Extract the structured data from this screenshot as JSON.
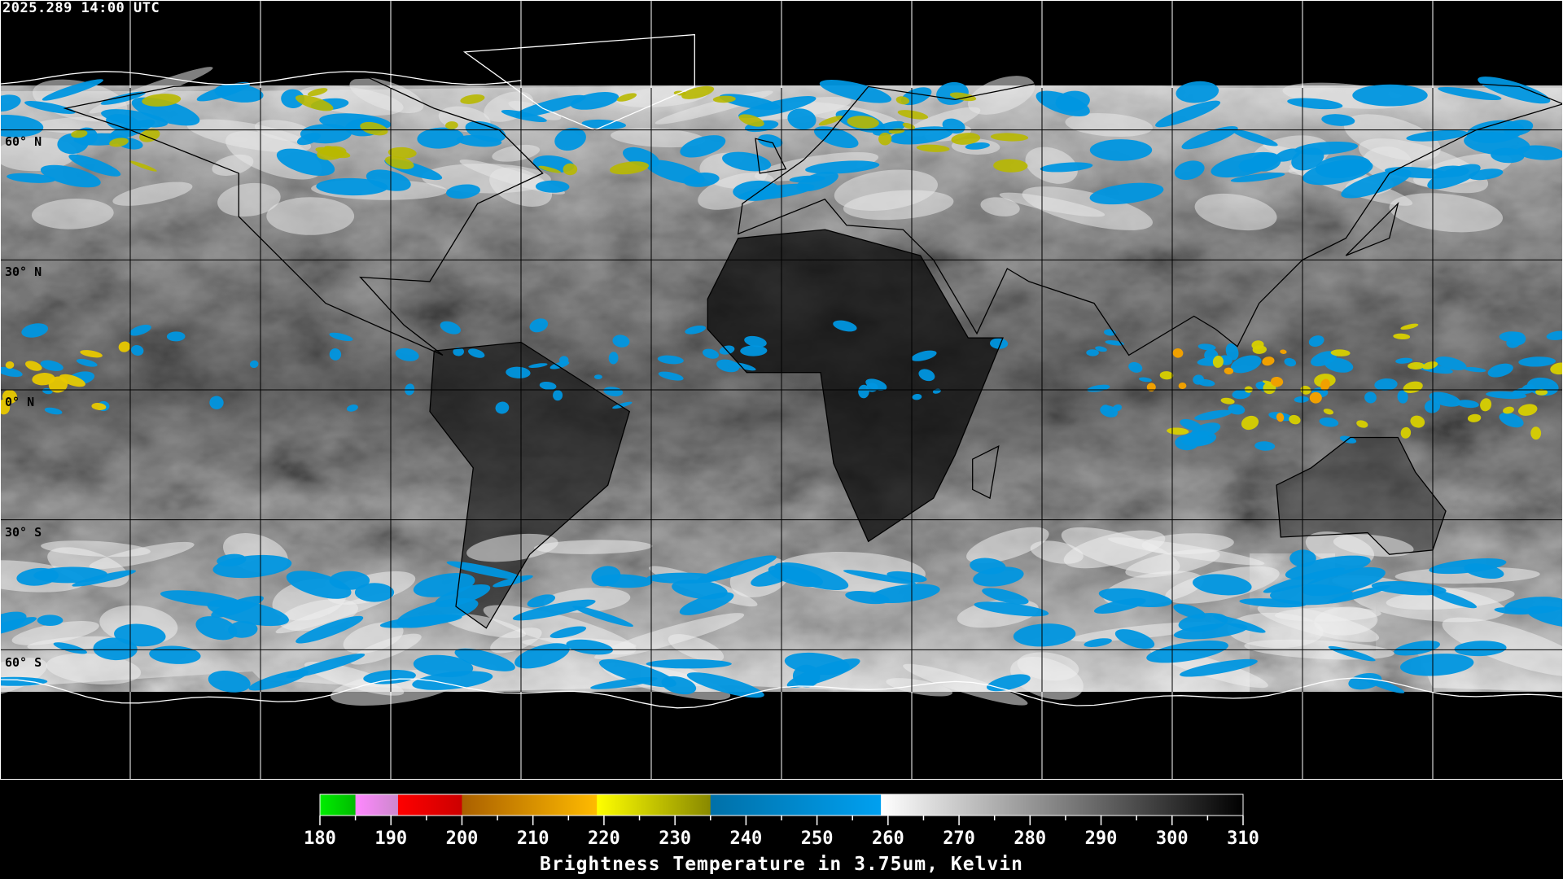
{
  "header": {
    "timestamp": "2025.289 14:00 UTC"
  },
  "map": {
    "projection": "equirectangular",
    "grid_spacing_degrees": 30,
    "lat_labels": [
      "60° N",
      "30° N",
      "0° N",
      "30° S",
      "60° S"
    ],
    "colors": {
      "no_data": "#000000",
      "grid": "#000000",
      "grid_polar": "#ffffff",
      "coastline": "#000000",
      "coastline_polar": "#ffffff"
    }
  },
  "colorbar": {
    "title": "Brightness Temperature in 3.75um, Kelvin",
    "min": 180,
    "max": 310,
    "tick_labels": [
      "180",
      "190",
      "200",
      "210",
      "220",
      "230",
      "240",
      "250",
      "260",
      "270",
      "280",
      "290",
      "300",
      "310"
    ],
    "segments": [
      {
        "from": 180,
        "to": 185,
        "start": "#00ee00",
        "end": "#00bb00"
      },
      {
        "from": 185,
        "to": 191,
        "start": "#ff88ff",
        "end": "#cc88cc"
      },
      {
        "from": 191,
        "to": 200,
        "start": "#ff0000",
        "end": "#cc0000"
      },
      {
        "from": 200,
        "to": 219,
        "start": "#aa6000",
        "end": "#ffbb00"
      },
      {
        "from": 219,
        "to": 235,
        "start": "#ffff00",
        "end": "#888800"
      },
      {
        "from": 235,
        "to": 259,
        "start": "#0070a8",
        "end": "#00a0f0"
      },
      {
        "from": 259,
        "to": 310,
        "start": "#ffffff",
        "end": "#000000"
      }
    ]
  }
}
